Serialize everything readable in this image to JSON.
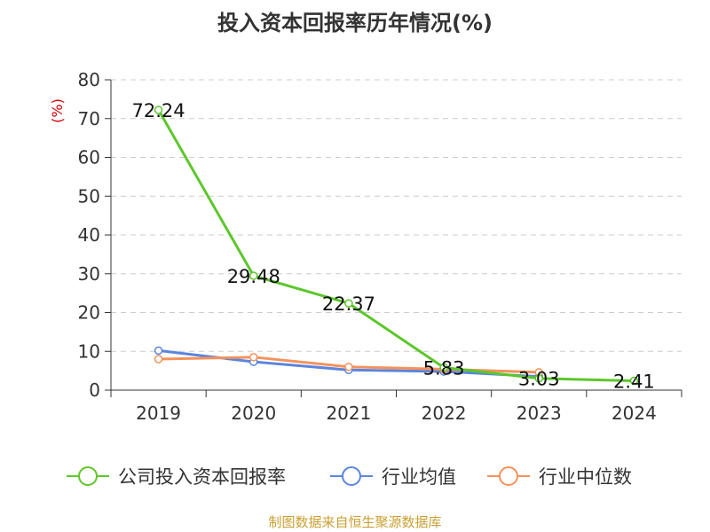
{
  "chart_data": {
    "type": "line",
    "title": "投入资本回报率历年情况(%)",
    "ylabel": "(%)",
    "categories": [
      "2019",
      "2020",
      "2021",
      "2022",
      "2023",
      "2024"
    ],
    "ylim": [
      0,
      80
    ],
    "yticks": [
      0,
      10,
      20,
      30,
      40,
      50,
      60,
      70,
      80
    ],
    "grid": true,
    "legend_position": "bottom",
    "series": [
      {
        "name": "公司投入资本回报率",
        "color": "#5cc72b",
        "values": [
          72.24,
          29.48,
          22.37,
          5.83,
          3.03,
          2.41
        ],
        "show_labels": true
      },
      {
        "name": "行业均值",
        "color": "#5b85dd",
        "values": [
          10.2,
          7.3,
          5.2,
          4.8,
          3.5,
          null
        ],
        "show_labels": false
      },
      {
        "name": "行业中位数",
        "color": "#f4925b",
        "values": [
          8.0,
          8.5,
          6.0,
          5.4,
          4.6,
          null
        ],
        "show_labels": false
      }
    ]
  },
  "source": "制图数据来自恒生聚源数据库"
}
